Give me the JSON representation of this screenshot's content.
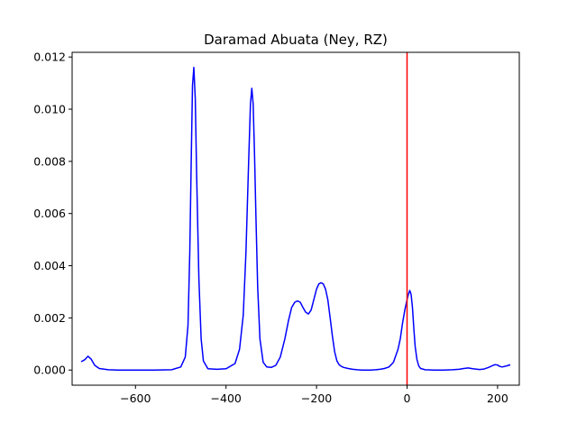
{
  "chart_data": {
    "type": "line",
    "title": "Daramad Abuata (Ney, RZ)",
    "xlabel": "",
    "ylabel": "",
    "xlim": [
      -740,
      248
    ],
    "ylim": [
      -0.00058,
      0.01218
    ],
    "x_ticks": [
      -600,
      -400,
      -200,
      0,
      200
    ],
    "x_tick_labels": [
      "−600",
      "−400",
      "−200",
      "0",
      "200"
    ],
    "y_ticks": [
      0.0,
      0.002,
      0.004,
      0.006,
      0.008,
      0.01,
      0.012
    ],
    "y_tick_labels": [
      "0.000",
      "0.002",
      "0.004",
      "0.006",
      "0.008",
      "0.010",
      "0.012"
    ],
    "grid": false,
    "vertical_line": {
      "x": 0,
      "color": "#ff0000"
    },
    "series": [
      {
        "color": "#0000ff",
        "x": [
          -720,
          -712,
          -705,
          -698,
          -690,
          -680,
          -660,
          -640,
          -600,
          -560,
          -520,
          -500,
          -490,
          -484,
          -480,
          -477,
          -474,
          -471,
          -468,
          -465,
          -460,
          -455,
          -450,
          -440,
          -420,
          -400,
          -380,
          -370,
          -362,
          -356,
          -350,
          -346,
          -343,
          -340,
          -337,
          -334,
          -330,
          -325,
          -318,
          -310,
          -300,
          -290,
          -280,
          -270,
          -262,
          -255,
          -248,
          -242,
          -236,
          -230,
          -224,
          -218,
          -212,
          -206,
          -200,
          -195,
          -190,
          -185,
          -180,
          -175,
          -170,
          -165,
          -160,
          -155,
          -150,
          -145,
          -140,
          -130,
          -120,
          -110,
          -100,
          -90,
          -80,
          -70,
          -60,
          -50,
          -40,
          -30,
          -20,
          -15,
          -10,
          -5,
          0,
          3,
          6,
          9,
          12,
          15,
          18,
          22,
          26,
          30,
          40,
          60,
          80,
          100,
          115,
          125,
          135,
          145,
          160,
          170,
          180,
          190,
          195,
          200,
          205,
          210,
          220,
          228
        ],
        "y": [
          0.00032,
          0.0004,
          0.00053,
          0.00042,
          0.00018,
          6e-05,
          1e-05,
          0.0,
          0.0,
          0.0,
          1e-05,
          0.00012,
          0.0005,
          0.0017,
          0.0045,
          0.0078,
          0.0109,
          0.0116,
          0.0104,
          0.0075,
          0.0035,
          0.0012,
          0.00035,
          5e-05,
          3e-05,
          5e-05,
          0.00025,
          0.0008,
          0.0021,
          0.0045,
          0.008,
          0.0102,
          0.0108,
          0.0102,
          0.0083,
          0.006,
          0.0032,
          0.0012,
          0.0003,
          0.00012,
          0.0001,
          0.00018,
          0.0005,
          0.0012,
          0.0019,
          0.0024,
          0.0026,
          0.00265,
          0.0026,
          0.0024,
          0.00222,
          0.00215,
          0.0023,
          0.0027,
          0.0031,
          0.0033,
          0.00335,
          0.0033,
          0.0031,
          0.0027,
          0.002,
          0.0013,
          0.0007,
          0.00035,
          0.0002,
          0.00014,
          0.0001,
          6e-05,
          3e-05,
          1e-05,
          0.0,
          0.0,
          0.0,
          1e-05,
          3e-05,
          6e-05,
          0.00012,
          0.0003,
          0.0008,
          0.0012,
          0.0018,
          0.0023,
          0.0027,
          0.0029,
          0.00305,
          0.0029,
          0.0024,
          0.0016,
          0.0009,
          0.0004,
          0.00015,
          6e-05,
          1e-05,
          0.0,
          0.0,
          1e-05,
          3e-05,
          6e-05,
          8e-05,
          5e-05,
          2e-05,
          4e-05,
          0.0001,
          0.00018,
          0.00021,
          0.00019,
          0.00014,
          0.00012,
          0.00016,
          0.0002
        ]
      }
    ]
  }
}
